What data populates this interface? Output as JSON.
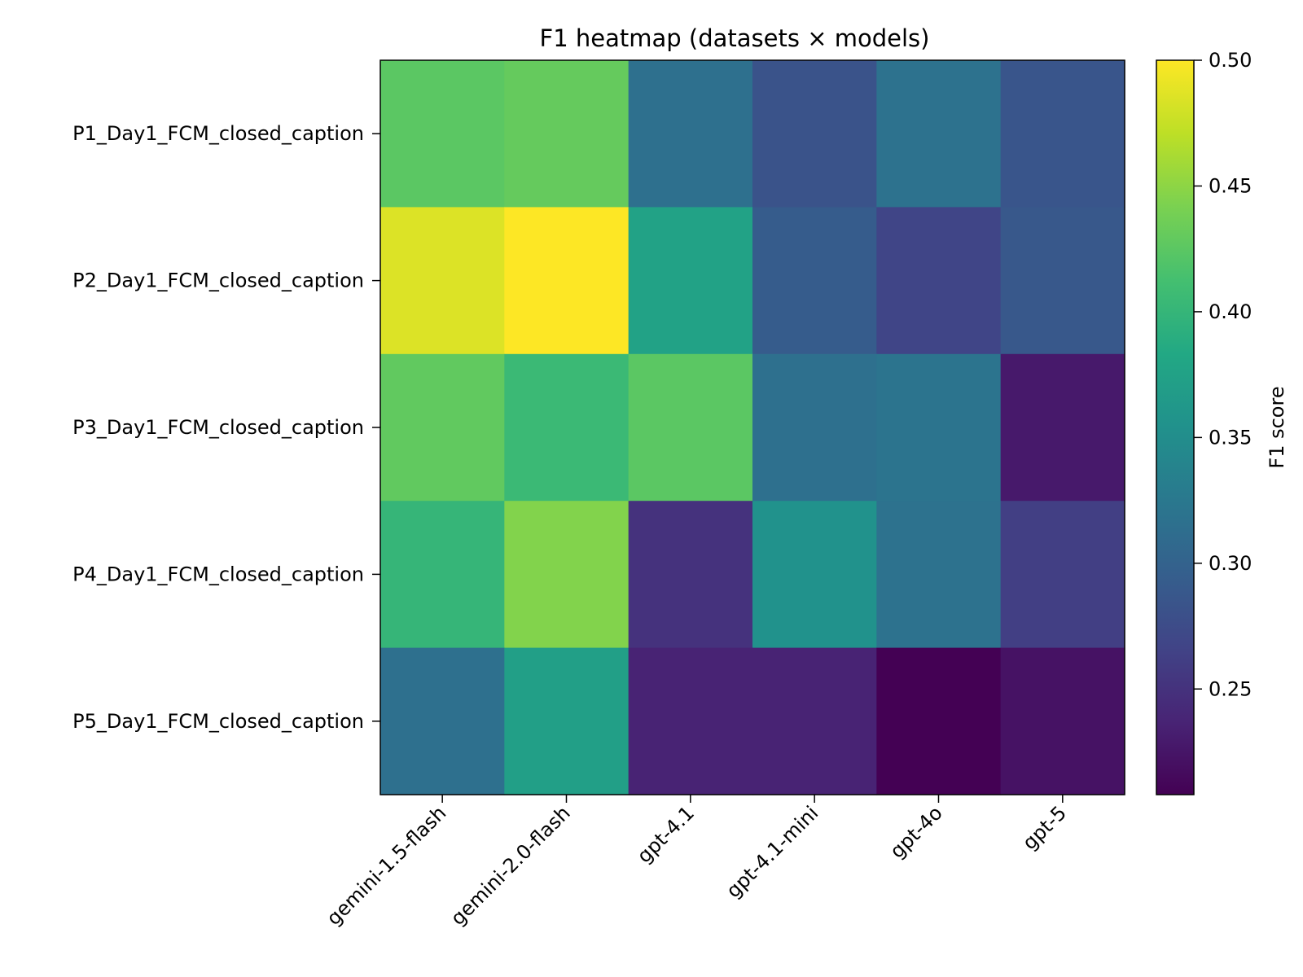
{
  "chart_data": {
    "type": "heatmap",
    "title": "F1 heatmap (datasets × models)",
    "rows": [
      "P1_Day1_FCM_closed_caption",
      "P2_Day1_FCM_closed_caption",
      "P3_Day1_FCM_closed_caption",
      "P4_Day1_FCM_closed_caption",
      "P5_Day1_FCM_closed_caption"
    ],
    "columns": [
      "gemini-1.5-flash",
      "gemini-2.0-flash",
      "gpt-4.1",
      "gpt-4.1-mini",
      "gpt-4o",
      "gpt-5"
    ],
    "values": [
      [
        0.425,
        0.43,
        0.315,
        0.283,
        0.318,
        0.285
      ],
      [
        0.485,
        0.5,
        0.375,
        0.292,
        0.268,
        0.288
      ],
      [
        0.428,
        0.405,
        0.425,
        0.315,
        0.32,
        0.228
      ],
      [
        0.4,
        0.445,
        0.25,
        0.355,
        0.318,
        0.262
      ],
      [
        0.315,
        0.372,
        0.236,
        0.236,
        0.208,
        0.222
      ]
    ],
    "colorbar": {
      "label": "F1 score",
      "vmin": 0.208,
      "vmax": 0.5,
      "ticks": [
        0.25,
        0.3,
        0.35,
        0.4,
        0.45,
        0.5
      ],
      "tick_labels": [
        "0.25",
        "0.30",
        "0.35",
        "0.40",
        "0.45",
        "0.50"
      ],
      "colormap": "viridis"
    }
  }
}
